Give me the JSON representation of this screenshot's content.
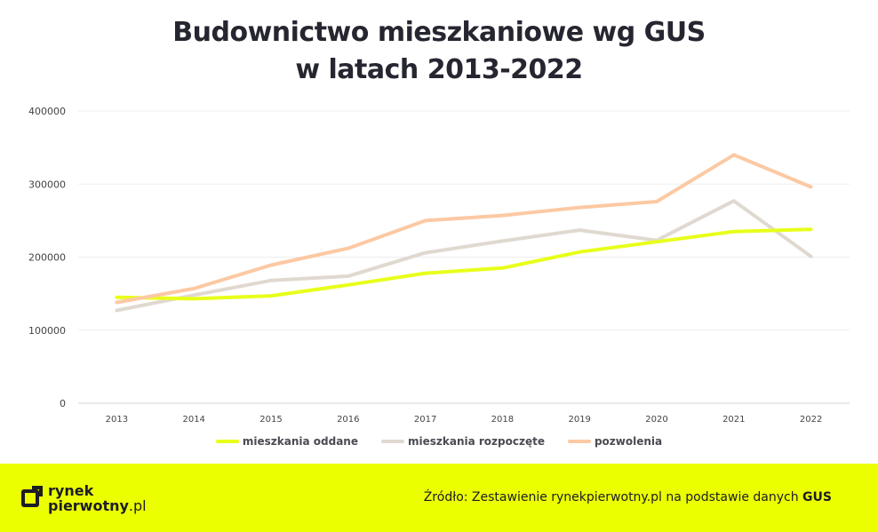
{
  "title_line1": "Budownictwo mieszkaniowe wg GUS",
  "title_line2": "w latach 2013-2022",
  "footer": {
    "logo_line1": "rynek",
    "logo_line2_bold": "pierwotny",
    "logo_line2_suffix": ".pl",
    "source_text": "Źródło: Zestawienie rynekpierwotny.pl na podstawie danych ",
    "source_bold": "GUS"
  },
  "colors": {
    "accent": "#ebff00",
    "series1": "#e8ff1a",
    "series2": "#e0d9d0",
    "series3": "#fcc9a3",
    "grid": "#eeeeee"
  },
  "chart_data": {
    "type": "line",
    "title": "Budownictwo mieszkaniowe wg GUS w latach 2013-2022",
    "xlabel": "",
    "ylabel": "",
    "x": [
      "2013",
      "2014",
      "2015",
      "2016",
      "2017",
      "2018",
      "2019",
      "2020",
      "2021",
      "2022"
    ],
    "ylim": [
      0,
      400000
    ],
    "yticks": [
      "0",
      "100000",
      "200000",
      "300000",
      "400000"
    ],
    "grid": true,
    "legend_position": "bottom",
    "series": [
      {
        "name": "mieszkania oddane",
        "color": "#e8ff1a",
        "values": [
          145000,
          143000,
          147000,
          162000,
          178000,
          185000,
          207000,
          221000,
          235000,
          238000
        ]
      },
      {
        "name": "mieszkania rozpoczęte",
        "color": "#e0d9d0",
        "values": [
          127000,
          148000,
          168000,
          174000,
          206000,
          222000,
          237000,
          223000,
          277000,
          201000
        ]
      },
      {
        "name": "pozwolenia",
        "color": "#fcc9a3",
        "values": [
          138000,
          157000,
          189000,
          212000,
          250000,
          257000,
          268000,
          276000,
          340000,
          296000
        ]
      }
    ]
  }
}
